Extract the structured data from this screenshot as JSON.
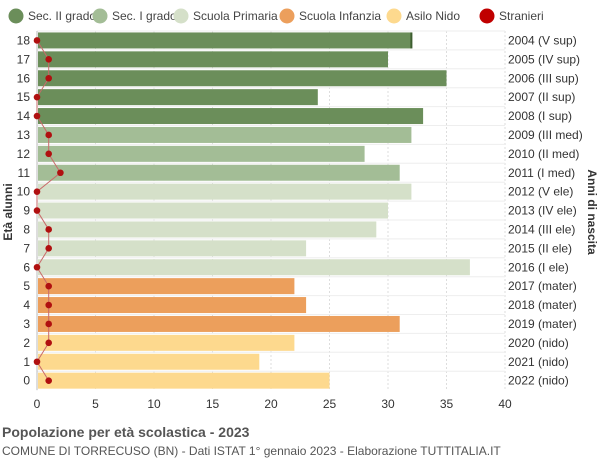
{
  "chart_data": {
    "type": "bar",
    "orientation": "horizontal",
    "title": "Popolazione per età scolastica - 2023",
    "subtitle": "COMUNE DI TORRECUSO (BN) - Dati ISTAT 1° gennaio 2023 - Elaborazione TUTTITALIA.IT",
    "ylabel": "Età alunni",
    "ylabel_right": "Anni di nascita",
    "xlim": [
      0,
      40
    ],
    "xticks": [
      "0",
      "5",
      "10",
      "15",
      "20",
      "25",
      "30",
      "35",
      "40"
    ],
    "legend": [
      {
        "key": "sec2",
        "label": "Sec. II grado",
        "color": "#6b8e5a"
      },
      {
        "key": "sec1",
        "label": "Sec. I grado",
        "color": "#a3bd96"
      },
      {
        "key": "prim",
        "label": "Scuola Primaria",
        "color": "#d5e0c9"
      },
      {
        "key": "inf",
        "label": "Scuola Infanzia",
        "color": "#ec9f5c"
      },
      {
        "key": "nido",
        "label": "Asilo Nido",
        "color": "#fdd98e"
      },
      {
        "key": "str",
        "label": "Stranieri",
        "color": "#c00000"
      }
    ],
    "rows": [
      {
        "age": "18",
        "birth": "2004 (V sup)",
        "value": 32,
        "stranieri": 0,
        "group": "sec2"
      },
      {
        "age": "17",
        "birth": "2005 (IV sup)",
        "value": 30,
        "stranieri": 1,
        "group": "sec2"
      },
      {
        "age": "16",
        "birth": "2006 (III sup)",
        "value": 35,
        "stranieri": 1,
        "group": "sec2"
      },
      {
        "age": "15",
        "birth": "2007 (II sup)",
        "value": 24,
        "stranieri": 0,
        "group": "sec2"
      },
      {
        "age": "14",
        "birth": "2008 (I sup)",
        "value": 33,
        "stranieri": 0,
        "group": "sec2"
      },
      {
        "age": "13",
        "birth": "2009 (III med)",
        "value": 32,
        "stranieri": 1,
        "group": "sec1"
      },
      {
        "age": "12",
        "birth": "2010 (II med)",
        "value": 28,
        "stranieri": 1,
        "group": "sec1"
      },
      {
        "age": "11",
        "birth": "2011 (I med)",
        "value": 31,
        "stranieri": 2,
        "group": "sec1"
      },
      {
        "age": "10",
        "birth": "2012 (V ele)",
        "value": 32,
        "stranieri": 0,
        "group": "prim"
      },
      {
        "age": "9",
        "birth": "2013 (IV ele)",
        "value": 30,
        "stranieri": 0,
        "group": "prim"
      },
      {
        "age": "8",
        "birth": "2014 (III ele)",
        "value": 29,
        "stranieri": 1,
        "group": "prim"
      },
      {
        "age": "7",
        "birth": "2015 (II ele)",
        "value": 23,
        "stranieri": 1,
        "group": "prim"
      },
      {
        "age": "6",
        "birth": "2016 (I ele)",
        "value": 37,
        "stranieri": 0,
        "group": "prim"
      },
      {
        "age": "5",
        "birth": "2017 (mater)",
        "value": 22,
        "stranieri": 1,
        "group": "inf"
      },
      {
        "age": "4",
        "birth": "2018 (mater)",
        "value": 23,
        "stranieri": 1,
        "group": "inf"
      },
      {
        "age": "3",
        "birth": "2019 (mater)",
        "value": 31,
        "stranieri": 1,
        "group": "inf"
      },
      {
        "age": "2",
        "birth": "2020 (nido)",
        "value": 22,
        "stranieri": 1,
        "group": "nido"
      },
      {
        "age": "1",
        "birth": "2021 (nido)",
        "value": 19,
        "stranieri": 0,
        "group": "nido"
      },
      {
        "age": "0",
        "birth": "2022 (nido)",
        "value": 25,
        "stranieri": 1,
        "group": "nido"
      }
    ]
  }
}
